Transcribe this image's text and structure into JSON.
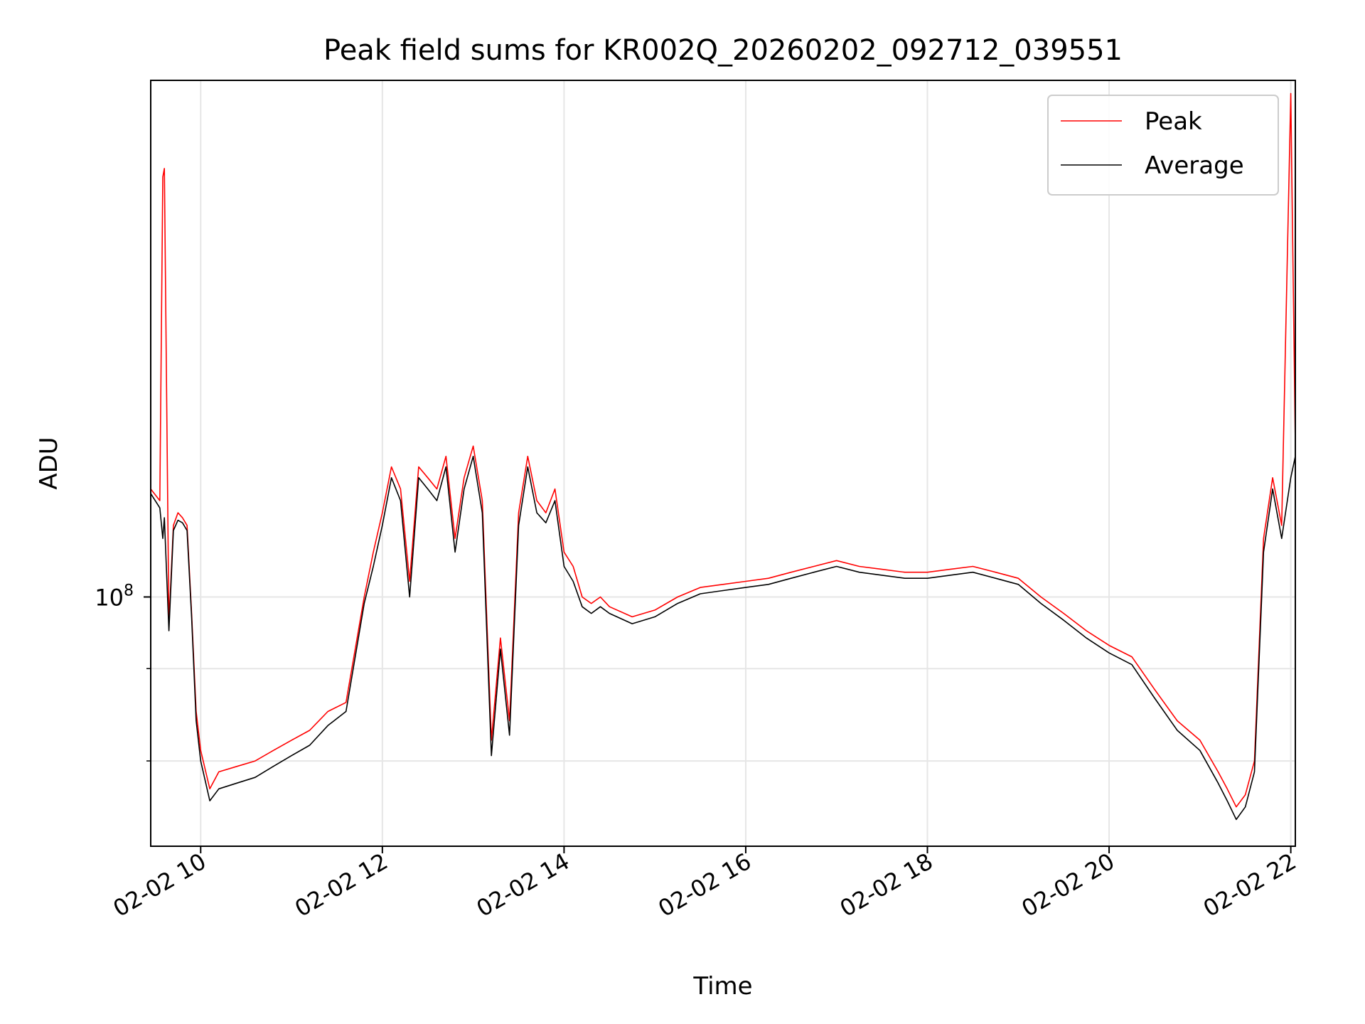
{
  "chart_data": {
    "type": "line",
    "title": "Peak field sums for KR002Q_20260202_092712_039551",
    "xlabel": "Time",
    "ylabel": "ADU",
    "y_scale": "log",
    "x_range": [
      "2026-02-02 09:27",
      "2026-02-02 22:03"
    ],
    "ylim": [
      46000000,
      500000000
    ],
    "grid": true,
    "legend_position": "upper right",
    "x_tick_labels": [
      "02-02 10",
      "02-02 12",
      "02-02 14",
      "02-02 16",
      "02-02 18",
      "02-02 20",
      "02-02 22"
    ],
    "x_tick_times": [
      "2026-02-02 10:00",
      "2026-02-02 12:00",
      "2026-02-02 14:00",
      "2026-02-02 16:00",
      "2026-02-02 18:00",
      "2026-02-02 20:00",
      "2026-02-02 22:00"
    ],
    "y_tick_labels": [
      {
        "base": "10",
        "exp": "8",
        "value": 100000000
      }
    ],
    "y_minor_ticks": [
      60000000,
      80000000
    ],
    "x": [
      "09:27",
      "09:33",
      "09:35",
      "09:36",
      "09:39",
      "09:42",
      "09:45",
      "09:48",
      "09:51",
      "09:54",
      "09:57",
      "10:00",
      "10:06",
      "10:12",
      "10:24",
      "10:36",
      "10:48",
      "11:00",
      "11:12",
      "11:24",
      "11:36",
      "11:48",
      "11:54",
      "12:00",
      "12:06",
      "12:12",
      "12:18",
      "12:24",
      "12:30",
      "12:36",
      "12:42",
      "12:48",
      "12:54",
      "13:00",
      "13:06",
      "13:12",
      "13:18",
      "13:24",
      "13:30",
      "13:36",
      "13:42",
      "13:48",
      "13:54",
      "14:00",
      "14:06",
      "14:12",
      "14:18",
      "14:24",
      "14:30",
      "14:45",
      "15:00",
      "15:15",
      "15:30",
      "15:45",
      "16:00",
      "16:15",
      "16:30",
      "16:45",
      "17:00",
      "17:15",
      "17:30",
      "17:45",
      "18:00",
      "18:15",
      "18:30",
      "18:45",
      "19:00",
      "19:15",
      "19:30",
      "19:45",
      "20:00",
      "20:15",
      "20:30",
      "20:45",
      "21:00",
      "21:12",
      "21:18",
      "21:24",
      "21:30",
      "21:36",
      "21:42",
      "21:48",
      "21:54",
      "22:00",
      "22:03"
    ],
    "series": [
      {
        "name": "Peak",
        "color": "#ff0000",
        "values": [
          140000000,
          135000000,
          370000000,
          380000000,
          92000000,
          125000000,
          130000000,
          128000000,
          125000000,
          95000000,
          70000000,
          62000000,
          55000000,
          58000000,
          59000000,
          60000000,
          62000000,
          64000000,
          66000000,
          70000000,
          72000000,
          100000000,
          115000000,
          130000000,
          150000000,
          140000000,
          105000000,
          150000000,
          145000000,
          140000000,
          155000000,
          120000000,
          145000000,
          160000000,
          135000000,
          64000000,
          88000000,
          68000000,
          130000000,
          155000000,
          135000000,
          130000000,
          140000000,
          115000000,
          110000000,
          100000000,
          98000000,
          100000000,
          97000000,
          94000000,
          96000000,
          100000000,
          103000000,
          104000000,
          105000000,
          106000000,
          108000000,
          110000000,
          112000000,
          110000000,
          109000000,
          108000000,
          108000000,
          109000000,
          110000000,
          108000000,
          106000000,
          100000000,
          95000000,
          90000000,
          86000000,
          83000000,
          75000000,
          68000000,
          64000000,
          58000000,
          55000000,
          52000000,
          54000000,
          60000000,
          120000000,
          145000000,
          125000000,
          480000000,
          160000000
        ]
      },
      {
        "name": "Average",
        "color": "#000000",
        "values": [
          138000000,
          132000000,
          120000000,
          128000000,
          90000000,
          123000000,
          127000000,
          126000000,
          123000000,
          94000000,
          68000000,
          60000000,
          53000000,
          55000000,
          56000000,
          57000000,
          59000000,
          61000000,
          63000000,
          67000000,
          70000000,
          98000000,
          110000000,
          125000000,
          145000000,
          135000000,
          100000000,
          145000000,
          140000000,
          135000000,
          150000000,
          115000000,
          140000000,
          155000000,
          130000000,
          61000000,
          85000000,
          65000000,
          125000000,
          150000000,
          130000000,
          126000000,
          135000000,
          110000000,
          105000000,
          97000000,
          95000000,
          97000000,
          95000000,
          92000000,
          94000000,
          98000000,
          101000000,
          102000000,
          103000000,
          104000000,
          106000000,
          108000000,
          110000000,
          108000000,
          107000000,
          106000000,
          106000000,
          107000000,
          108000000,
          106000000,
          104000000,
          98000000,
          93000000,
          88000000,
          84000000,
          81000000,
          73000000,
          66000000,
          62000000,
          56000000,
          53000000,
          50000000,
          52000000,
          58000000,
          115000000,
          140000000,
          120000000,
          145000000,
          155000000
        ]
      }
    ]
  }
}
